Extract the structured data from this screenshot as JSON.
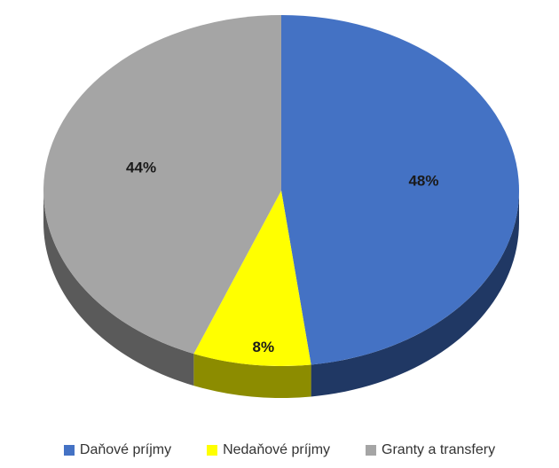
{
  "chart_data": {
    "type": "pie",
    "style": "3d",
    "title": "",
    "legend_position": "bottom",
    "series": [
      {
        "name": "",
        "categories": [
          "Daňové príjmy",
          "Nedaňové príjmy",
          "Granty a transfery"
        ],
        "values": [
          48,
          8,
          44
        ],
        "labels": [
          "48%",
          "8%",
          "44%"
        ],
        "colors": [
          "#4472C4",
          "#FFFF00",
          "#A5A5A5"
        ],
        "side_colors": [
          "#203864",
          "#8C8C00",
          "#5A5A5A"
        ]
      }
    ]
  }
}
